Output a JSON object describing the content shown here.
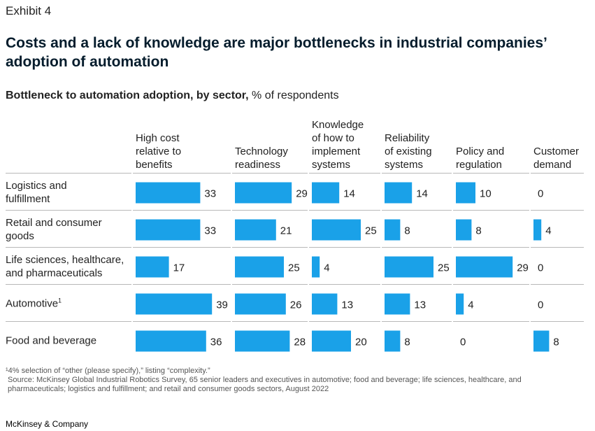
{
  "header": {
    "exhibit": "Exhibit 4",
    "title": "Costs and a lack of knowledge are major bottlenecks in industrial companies’ adoption of automation",
    "subtitle_bold": "Bottleneck to automation adoption, by sector,",
    "subtitle_unit": " % of respondents"
  },
  "colors": {
    "bar": "#1aa1e8",
    "divider": "#b8b8b8",
    "text": "#222222"
  },
  "chart_data": {
    "type": "bar",
    "orientation": "horizontal",
    "layout": "small-multiples",
    "unit": "% of respondents",
    "sectors": [
      [
        "Logistics and",
        "fulfillment"
      ],
      [
        "Retail and consumer",
        "goods"
      ],
      [
        "Life sciences, healthcare,",
        "and pharmaceuticals"
      ],
      [
        "Automotive"
      ],
      [
        "Food and beverage"
      ]
    ],
    "sector_footnote_marks": [
      "",
      "",
      "",
      "1",
      ""
    ],
    "series": [
      {
        "name": [
          "High cost",
          "relative to",
          "benefits"
        ],
        "values": [
          33,
          33,
          17,
          39,
          36
        ]
      },
      {
        "name": [
          "Technology",
          "readiness"
        ],
        "values": [
          29,
          21,
          25,
          26,
          28
        ]
      },
      {
        "name": [
          "Knowledge",
          "of how to",
          "implement",
          "systems"
        ],
        "values": [
          14,
          25,
          4,
          13,
          20
        ]
      },
      {
        "name": [
          "Reliability",
          "of existing",
          "systems"
        ],
        "values": [
          14,
          8,
          25,
          13,
          8
        ]
      },
      {
        "name": [
          "Policy and",
          "regulation"
        ],
        "values": [
          10,
          8,
          29,
          4,
          0
        ]
      },
      {
        "name": [
          "Customer",
          "demand"
        ],
        "values": [
          0,
          4,
          0,
          0,
          8
        ]
      }
    ]
  },
  "footer": {
    "footnote": "¹4% selection of “other (please specify),” listing “complexity.”",
    "source": "Source: McKinsey Global Industrial Robotics Survey, 65 senior leaders and executives in automotive; food and beverage; life sciences, healthcare, and pharmaceuticals; logistics and fulfillment; and retail and consumer goods sectors, August 2022",
    "brand": "McKinsey & Company"
  }
}
